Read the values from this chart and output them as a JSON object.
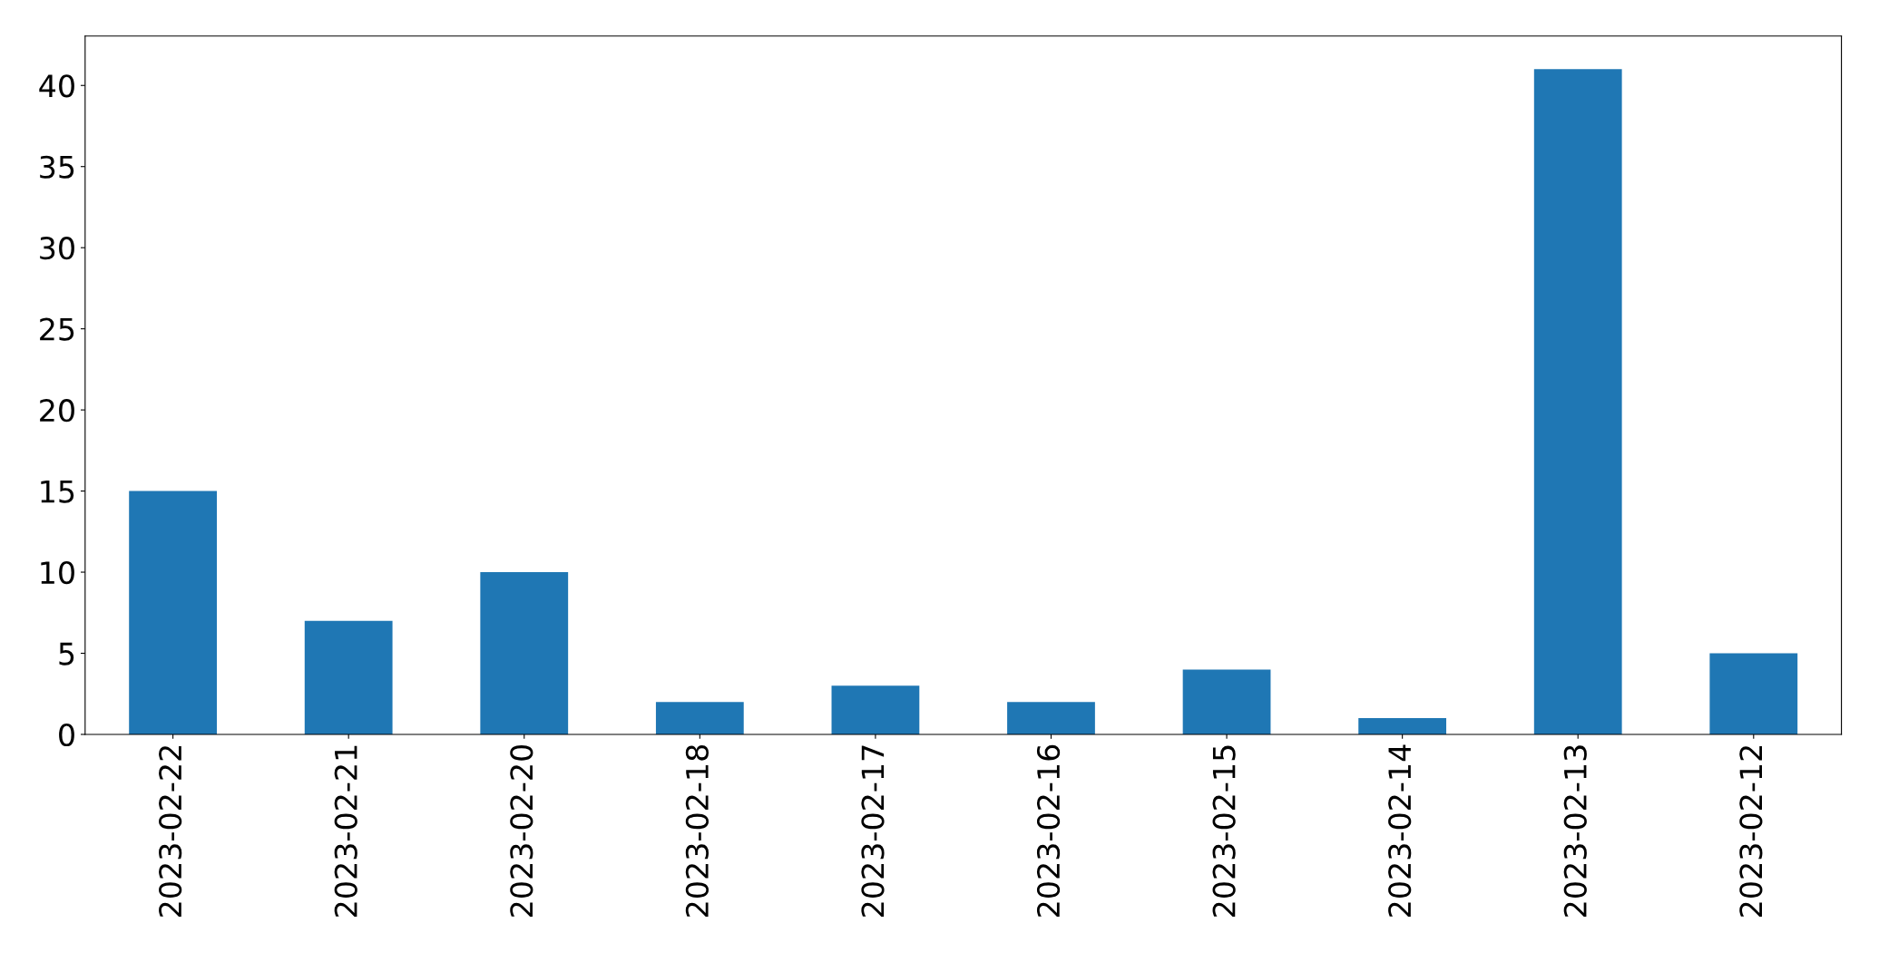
{
  "chart_data": {
    "type": "bar",
    "categories": [
      "2023-02-22",
      "2023-02-21",
      "2023-02-20",
      "2023-02-18",
      "2023-02-17",
      "2023-02-16",
      "2023-02-15",
      "2023-02-14",
      "2023-02-13",
      "2023-02-12"
    ],
    "values": [
      15,
      7,
      10,
      2,
      3,
      2,
      4,
      1,
      41,
      5
    ],
    "color": "#1f77b4",
    "ylim": [
      0,
      43.05
    ],
    "yticks": [
      0,
      5,
      10,
      15,
      20,
      25,
      30,
      35,
      40
    ],
    "grid": false,
    "legend": false
  }
}
